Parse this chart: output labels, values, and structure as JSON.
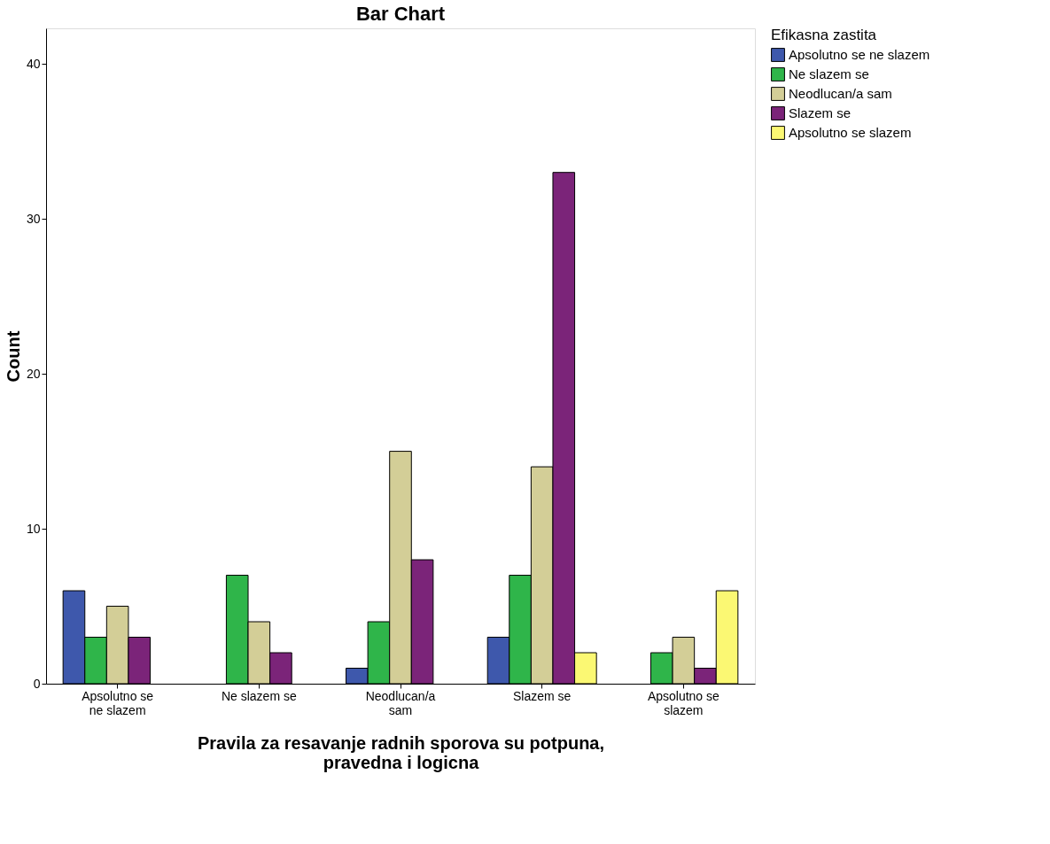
{
  "chart_data": {
    "type": "bar",
    "title": "Bar Chart",
    "xlabel": "Pravila za resavanje radnih sporova su potpuna, pravedna i logicna",
    "ylabel": "Count",
    "legend_title": "Efikasna zastita",
    "categories": [
      "Apsolutno se ne slazem",
      "Ne slazem se",
      "Neodlucan/a sam",
      "Slazem se",
      "Apsolutno se slazem"
    ],
    "series": [
      {
        "name": "Apsolutno se ne slazem",
        "color": "#3e58ac",
        "values": [
          6,
          null,
          1,
          3,
          null
        ]
      },
      {
        "name": "Ne slazem se",
        "color": "#2fb54a",
        "values": [
          3,
          7,
          4,
          7,
          2
        ]
      },
      {
        "name": "Neodlucan/a sam",
        "color": "#d3ce97",
        "values": [
          5,
          4,
          15,
          14,
          3
        ]
      },
      {
        "name": "Slazem se",
        "color": "#7b2479",
        "values": [
          3,
          2,
          8,
          33,
          1
        ]
      },
      {
        "name": "Apsolutno se slazem",
        "color": "#fbf873",
        "values": [
          null,
          null,
          null,
          2,
          6
        ]
      }
    ],
    "ylim": [
      0,
      42.3
    ],
    "yticks": [
      0,
      10,
      20,
      30,
      40
    ],
    "grid": false,
    "legend": "top right"
  }
}
